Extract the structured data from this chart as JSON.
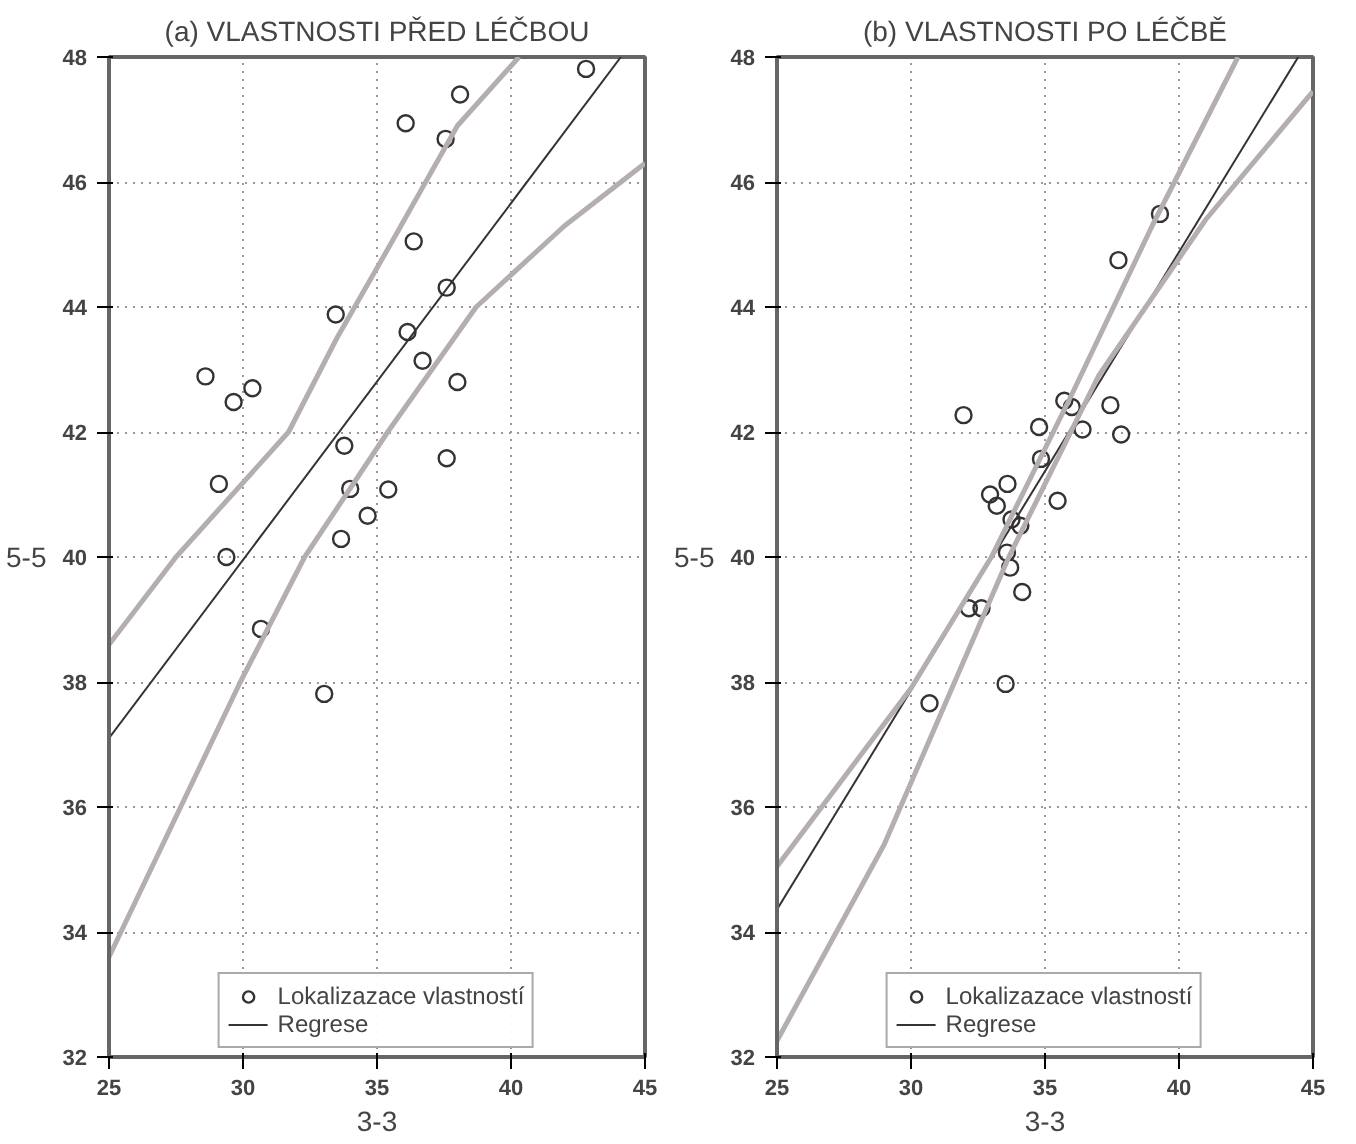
{
  "chart_data": [
    {
      "type": "scatter",
      "title": "(a) VLASTNOSTI PŘED LÉČBOU",
      "xlabel": "3-3",
      "ylabel": "5-5",
      "xlim": [
        25,
        45
      ],
      "ylim": [
        32,
        48
      ],
      "xticks": [
        25,
        30,
        35,
        40,
        45
      ],
      "yticks": [
        32,
        34,
        36,
        38,
        40,
        42,
        44,
        46,
        48
      ],
      "grid": true,
      "legend": "bottom",
      "series": [
        {
          "name": "Lokalizazace vlastností",
          "marker": "circle",
          "color": "#333333",
          "x": [
            28.6,
            29.65,
            30.35,
            29.1,
            29.38,
            30.67,
            33.03,
            33.46,
            33.66,
            33.78,
            34.0,
            34.65,
            35.42,
            36.07,
            36.14,
            36.37,
            36.7,
            37.56,
            37.6,
            37.6,
            38.1,
            38.0,
            42.8
          ],
          "values": [
            42.89,
            42.48,
            42.7,
            41.17,
            40.0,
            38.85,
            37.81,
            43.88,
            40.29,
            41.78,
            41.09,
            40.66,
            41.08,
            46.94,
            43.6,
            45.05,
            43.14,
            46.69,
            44.31,
            41.58,
            47.4,
            42.8,
            47.81
          ]
        },
        {
          "name": "Regrese",
          "type": "line",
          "marker": "none",
          "color": "#333333",
          "x": [
            25,
            44.1
          ],
          "values": [
            37.1,
            48
          ]
        },
        {
          "type": "line",
          "marker": "none",
          "color": "#b5aeae",
          "x": [
            25,
            27.5,
            31.7,
            33.5,
            35.5,
            38,
            40.3
          ],
          "values": [
            38.6,
            40.0,
            42.0,
            43.5,
            45.0,
            46.9,
            48
          ]
        },
        {
          "type": "line",
          "marker": "none",
          "color": "#b5aeae",
          "x": [
            25,
            29.9,
            32.3,
            35.4,
            38.7,
            42,
            45
          ],
          "values": [
            33.6,
            38.0,
            40.0,
            42.0,
            44.0,
            45.3,
            46.3
          ]
        }
      ]
    },
    {
      "type": "scatter",
      "title": "(b) VLASTNOSTI PO LÉČBĚ",
      "xlabel": "3-3",
      "ylabel": "5-5",
      "xlim": [
        25,
        45
      ],
      "ylim": [
        32,
        48
      ],
      "xticks": [
        25,
        30,
        35,
        40,
        45
      ],
      "yticks": [
        32,
        34,
        36,
        38,
        40,
        42,
        44,
        46,
        48
      ],
      "grid": true,
      "legend": "bottom",
      "series": [
        {
          "name": "Lokalizazace vlastností",
          "marker": "circle",
          "color": "#333333",
          "x": [
            31.96,
            32.95,
            33.6,
            33.2,
            33.75,
            34.08,
            33.58,
            33.7,
            34.78,
            34.85,
            35.47,
            35.72,
            36.0,
            36.4,
            37.44,
            37.84,
            37.74,
            39.29,
            32.16,
            32.63,
            34.15,
            33.53,
            30.69
          ],
          "values": [
            42.27,
            41.0,
            41.17,
            40.82,
            40.6,
            40.5,
            40.07,
            39.83,
            42.08,
            41.57,
            40.9,
            42.5,
            42.4,
            42.04,
            42.43,
            41.96,
            44.75,
            45.49,
            39.18,
            39.18,
            39.44,
            37.97,
            37.66
          ]
        },
        {
          "name": "Regrese",
          "type": "line",
          "marker": "none",
          "color": "#333333",
          "x": [
            25,
            44.45
          ],
          "values": [
            34.36,
            48
          ]
        },
        {
          "type": "line",
          "marker": "none",
          "color": "#b5aeae",
          "x": [
            25,
            30,
            33,
            36,
            39,
            42.2
          ],
          "values": [
            35.05,
            37.9,
            40.0,
            42.6,
            45.3,
            48
          ]
        },
        {
          "type": "line",
          "marker": "none",
          "color": "#b5aeae",
          "x": [
            25,
            29,
            33.65,
            37,
            41,
            45
          ],
          "values": [
            32.26,
            35.4,
            40.0,
            42.9,
            45.4,
            47.45
          ]
        }
      ]
    }
  ]
}
